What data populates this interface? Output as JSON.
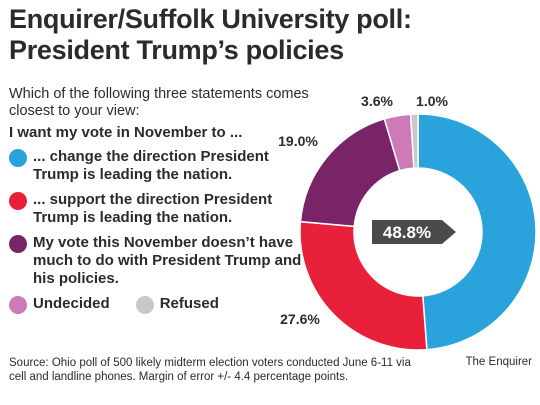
{
  "title_line1": "Enquirer/Suffolk University poll:",
  "title_line2": "President Trump’s policies",
  "subtitle": "Which of the following three statements comes closest to your view:",
  "legend_heading": "I want my vote in November to ...",
  "source": "Source: Ohio poll of 500 likely midterm election voters conducted June 6-11 via cell and landline phones. Margin of error +/- 4.4 percentage points.",
  "credit": "The Enquirer",
  "chart_data": {
    "type": "pie",
    "donut": true,
    "categories": [
      "... change the direction President Trump is leading the nation.",
      "... support the direction President Trump is leading the nation.",
      "My vote this November doesn’t have much to do with President Trump and his policies.",
      "Undecided",
      "Refused"
    ],
    "values": [
      48.8,
      27.6,
      19.0,
      3.6,
      1.0
    ],
    "labels": [
      "48.8%",
      "27.6%",
      "19.0%",
      "3.6%",
      "1.0%"
    ],
    "colors": [
      "#2aa3dc",
      "#e8203a",
      "#7a2468",
      "#cf7ab8",
      "#c8c8c8"
    ],
    "legend_placement": "left"
  }
}
